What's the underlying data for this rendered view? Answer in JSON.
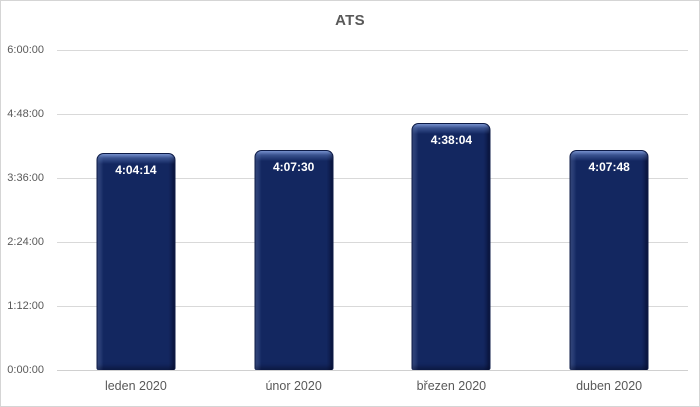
{
  "chart": {
    "title": "ATS"
  },
  "chart_data": {
    "type": "bar",
    "title": "ATS",
    "categories": [
      "leden 2020",
      "únor 2020",
      "březen 2020",
      "duben 2020"
    ],
    "values": [
      "4:04:14",
      "4:07:30",
      "4:38:04",
      "4:07:48"
    ],
    "values_hours": [
      4.0706,
      4.125,
      4.6344,
      4.13
    ],
    "xlabel": "",
    "ylabel": "",
    "y_ticks": [
      "6:00:00",
      "4:48:00",
      "3:36:00",
      "2:24:00",
      "1:12:00",
      "0:00:00"
    ],
    "ylim_hours": [
      0,
      6
    ],
    "grid": true,
    "legend": false,
    "data_label_position": "inside-end",
    "colors": {
      "bar": "#132760",
      "bar_highlight": "#3D5BA8",
      "bar_border": "#0D1B47",
      "data_label": "#FFFFFF",
      "gridline": "#D9D9D9",
      "axis_text": "#595959",
      "title_text": "#595959",
      "background": "#FFFFFF",
      "chart_border": "#D5D5D5"
    }
  }
}
